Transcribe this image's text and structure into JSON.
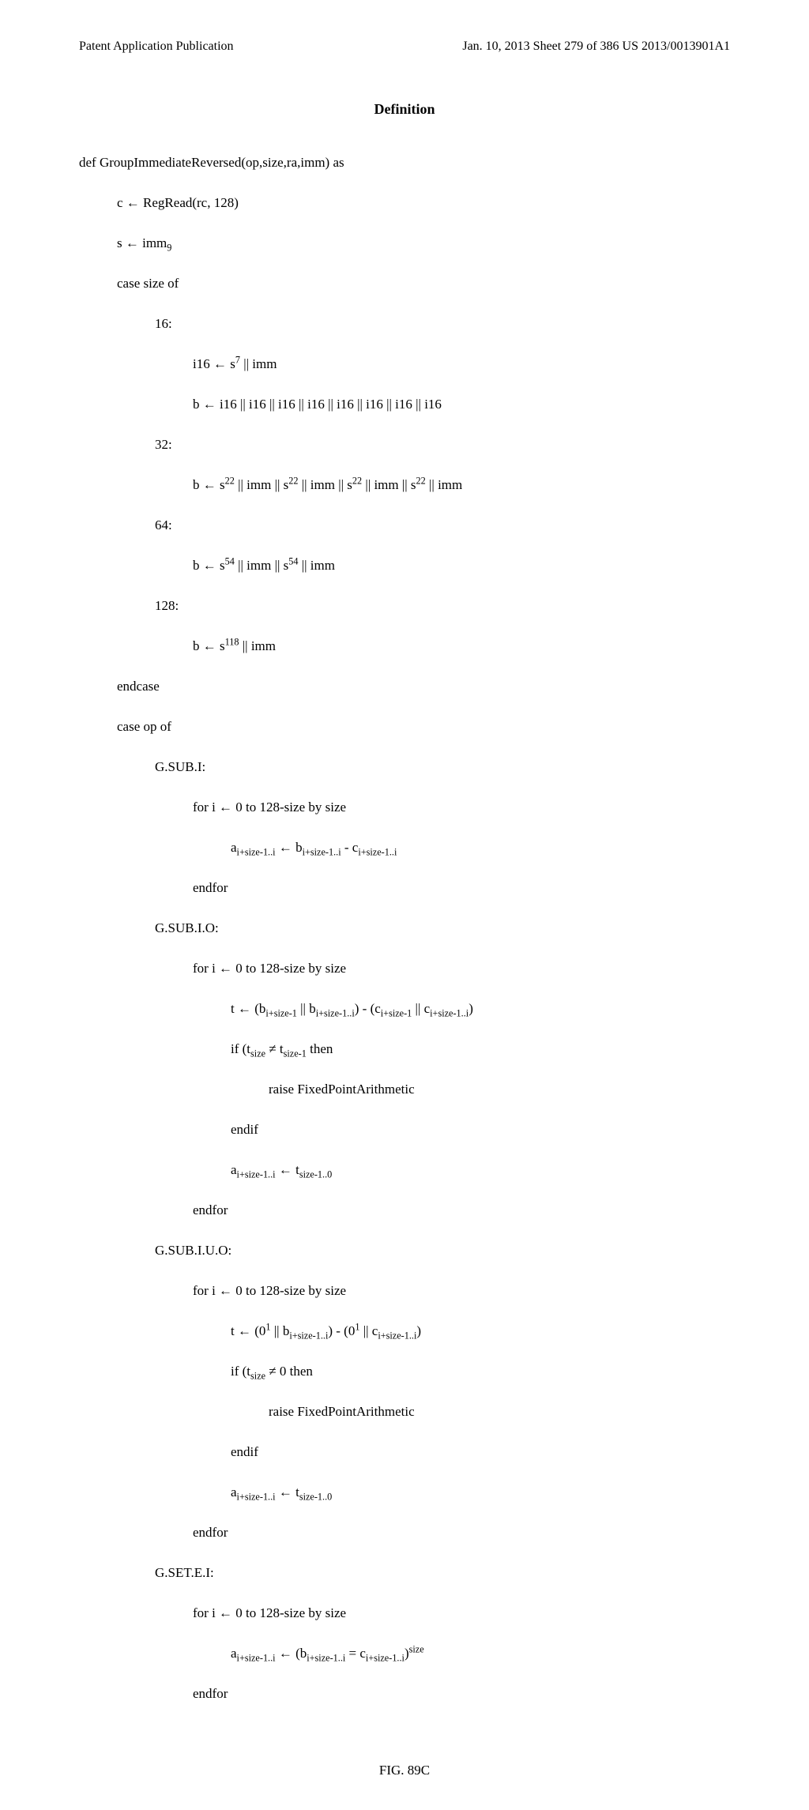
{
  "header": {
    "left": "Patent Application Publication",
    "right": "Jan. 10, 2013  Sheet 279 of 386   US 2013/0013901A1"
  },
  "title": "Definition",
  "figure_label": "FIG. 89C",
  "code": {
    "l1": "def GroupImmediateReversed(op,size,ra,imm) as",
    "l2": "c ← RegRead(rc, 128)",
    "l3_a": "s ← imm",
    "l3_b": "9",
    "l4": "case size of",
    "l5": "16:",
    "l6_a": "i16 ← s",
    "l6_b": "7",
    "l6_c": " || imm",
    "l7": "b ← i16 || i16 || i16 || i16 || i16 || i16 || i16 || i16",
    "l8": "32:",
    "l9_a": "b ← s",
    "l9_b": "22",
    "l9_c": " || imm || s",
    "l9_d": "22",
    "l9_e": " || imm || s",
    "l9_f": "22",
    "l9_g": " || imm || s",
    "l9_h": "22",
    "l9_i": " || imm",
    "l10": "64:",
    "l11_a": "b ← s",
    "l11_b": "54",
    "l11_c": " || imm || s",
    "l11_d": "54",
    "l11_e": " || imm",
    "l12": "128:",
    "l13_a": "b ← s",
    "l13_b": "118",
    "l13_c": " || imm",
    "l14": "endcase",
    "l15": "case op of",
    "l16": "G.SUB.I:",
    "l17": "for i ← 0 to 128-size by size",
    "l18_a": "a",
    "l18_b": "i+size-1..i",
    "l18_c": " ← b",
    "l18_d": "i+size-1..i",
    "l18_e": " - c",
    "l18_f": "i+size-1..i",
    "l19": "endfor",
    "l20": "G.SUB.I.O:",
    "l21": "for i ← 0 to 128-size by size",
    "l22_a": "t ← (b",
    "l22_b": "i+size-1",
    "l22_c": " || b",
    "l22_d": "i+size-1..i",
    "l22_e": ") - (c",
    "l22_f": "i+size-1",
    "l22_g": " || c",
    "l22_h": "i+size-1..i",
    "l22_i": ")",
    "l23_a": "if (t",
    "l23_b": "size",
    "l23_c": " ≠ t",
    "l23_d": "size-1",
    "l23_e": " then",
    "l24": "raise FixedPointArithmetic",
    "l25": "endif",
    "l26_a": "a",
    "l26_b": "i+size-1..i",
    "l26_c": " ← t",
    "l26_d": "size-1..0",
    "l27": "endfor",
    "l28": "G.SUB.I.U.O:",
    "l29": "for i ← 0 to 128-size by size",
    "l30_a": "t ← (0",
    "l30_b": "1",
    "l30_c": " || b",
    "l30_d": "i+size-1..i",
    "l30_e": ") - (0",
    "l30_f": "1",
    "l30_g": " || c",
    "l30_h": "i+size-1..i",
    "l30_i": ")",
    "l31_a": "if (t",
    "l31_b": "size",
    "l31_c": " ≠ 0 then",
    "l32": "raise FixedPointArithmetic",
    "l33": "endif",
    "l34_a": "a",
    "l34_b": "i+size-1..i",
    "l34_c": " ← t",
    "l34_d": "size-1..0",
    "l35": "endfor",
    "l36": "G.SET.E.I:",
    "l37": "for i ← 0 to 128-size by size",
    "l38_a": "a",
    "l38_b": "i+size-1..i",
    "l38_c": " ← (b",
    "l38_d": "i+size-1..i",
    "l38_e": " = c",
    "l38_f": "i+size-1..i",
    "l38_g": ")",
    "l38_h": "size",
    "l39": "endfor"
  }
}
